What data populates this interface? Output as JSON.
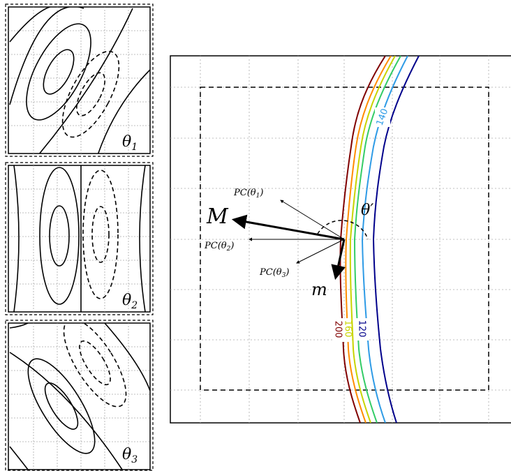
{
  "panels": [
    {
      "label": "θ",
      "sub": "1"
    },
    {
      "label": "θ",
      "sub": "2"
    },
    {
      "label": "θ",
      "sub": "3"
    }
  ],
  "main": {
    "labels": {
      "big_vector": "M",
      "small_vector": "m",
      "angle": "θ′",
      "pc1": {
        "text": "PC(θ",
        "sub": "1",
        "close": ")"
      },
      "pc2": {
        "text": "PC(θ",
        "sub": "2",
        "close": ")"
      },
      "pc3": {
        "text": "PC(θ",
        "sub": "3",
        "close": ")"
      }
    },
    "contours": [
      {
        "value": "200",
        "color": "#800000",
        "labeled": true
      },
      {
        "value": "",
        "color": "#ff8c00",
        "labeled": false
      },
      {
        "value": "160",
        "color": "#c8d400",
        "labeled": true
      },
      {
        "value": "",
        "color": "#33cc66",
        "labeled": false
      },
      {
        "value": "140",
        "color": "#2e9be6",
        "labeled": true
      },
      {
        "value": "120",
        "color": "#00008b",
        "labeled": true
      }
    ]
  }
}
